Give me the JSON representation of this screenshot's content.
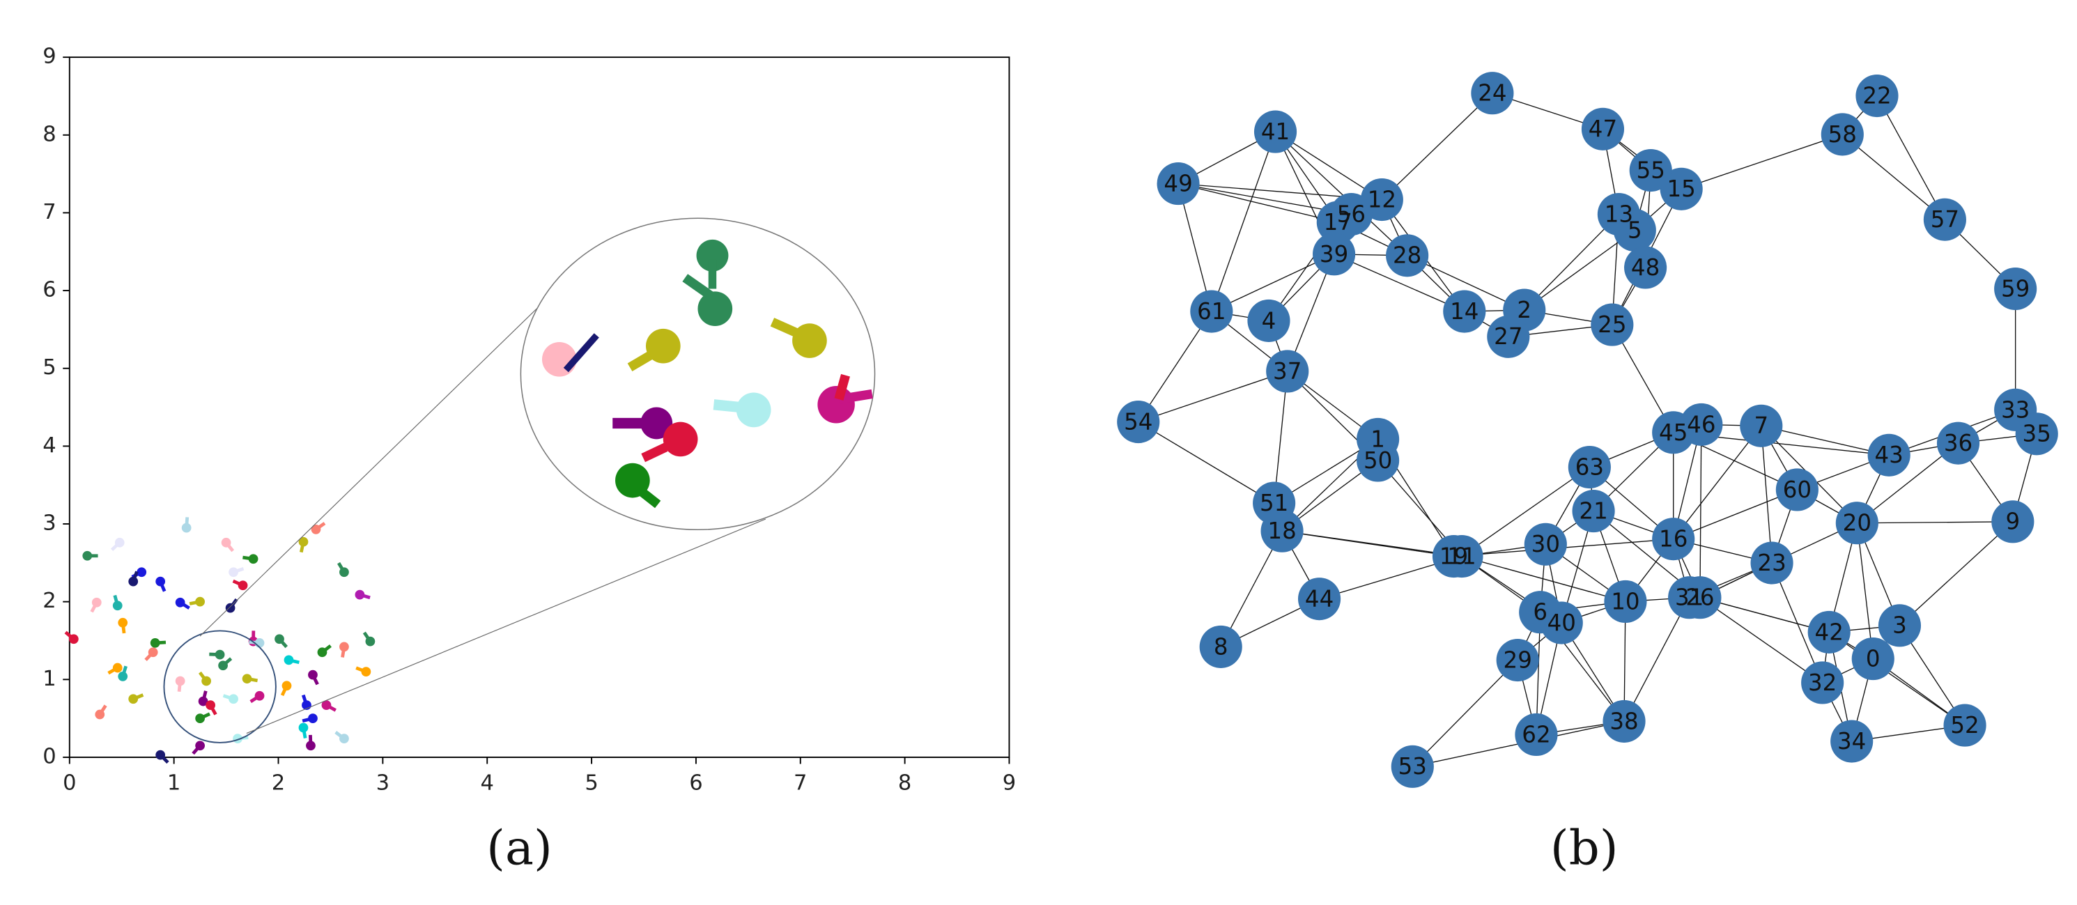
{
  "chart_data": [
    {
      "type": "scatter",
      "caption": "(a)",
      "x": [
        0.17,
        0.48,
        1.12,
        1.5,
        1.76,
        2.36,
        2.24,
        2.63,
        2.78,
        0.69,
        0.61,
        0.87,
        1.66,
        1.57,
        0.26,
        0.46,
        1.06,
        1.25,
        1.54,
        0.51,
        0.04,
        0.82,
        0.8,
        1.76,
        2.01,
        1.82,
        2.42,
        2.63,
        2.88,
        2.1,
        0.46,
        0.51,
        2.33,
        2.84,
        0.61,
        2.08,
        2.27,
        2.46,
        2.33,
        0.29,
        2.24,
        2.63,
        1.61,
        1.25,
        2.31,
        0.87,
        1.44,
        1.47,
        1.06,
        1.31,
        1.7,
        1.82,
        1.28,
        1.35,
        1.57,
        1.25
      ],
      "values": [
        2.59,
        2.76,
        2.95,
        2.76,
        2.55,
        2.93,
        2.77,
        2.38,
        2.09,
        2.38,
        2.26,
        2.26,
        2.21,
        2.38,
        1.99,
        1.95,
        1.99,
        2.0,
        1.92,
        1.73,
        1.52,
        1.47,
        1.35,
        1.49,
        1.52,
        1.47,
        1.35,
        1.42,
        1.49,
        1.25,
        1.15,
        1.04,
        1.06,
        1.1,
        0.75,
        0.92,
        0.67,
        0.67,
        0.5,
        0.55,
        0.38,
        0.24,
        0.24,
        0.15,
        0.15,
        0.03,
        1.32,
        1.18,
        0.98,
        0.98,
        1.01,
        0.79,
        0.72,
        0.67,
        0.75,
        0.5
      ],
      "colors": [
        "#2e8b57",
        "#e6e6fa",
        "#add8e6",
        "#ffb6c1",
        "#228b22",
        "#fa8072",
        "#bdb716",
        "#2e8b57",
        "#b01cb0",
        "#1a1add",
        "#191970",
        "#1a1add",
        "#dc143c",
        "#e6e6fa",
        "#ffb6c1",
        "#20b2aa",
        "#1a1add",
        "#bdb716",
        "#191970",
        "#ffa500",
        "#dc143c",
        "#228b22",
        "#fa8072",
        "#c71585",
        "#2e8b57",
        "#add8e6",
        "#228b22",
        "#fa8072",
        "#2e8b57",
        "#00ced1",
        "#ffa500",
        "#20b2aa",
        "#800080",
        "#ffa500",
        "#bdb716",
        "#ffa500",
        "#1a1add",
        "#c71585",
        "#1a1add",
        "#fa8072",
        "#00ced1",
        "#add8e6",
        "#afeeee",
        "#800080",
        "#800080",
        "#191970",
        "#2e8b57",
        "#2e8b57",
        "#ffb6c1",
        "#bdb716",
        "#bdb716",
        "#c71585",
        "#800080",
        "#dc143c",
        "#afeeee",
        "#228b22"
      ],
      "xlim": [
        0,
        9
      ],
      "ylim": [
        0,
        9
      ],
      "xticks": [
        0,
        1,
        2,
        3,
        4,
        5,
        6,
        7,
        8,
        9
      ],
      "yticks": [
        0,
        1,
        2,
        3,
        4,
        5,
        6,
        7,
        8,
        9
      ]
    },
    {
      "type": "network",
      "caption": "(b)",
      "nodes": [
        "0",
        "1",
        "2",
        "3",
        "4",
        "5",
        "6",
        "7",
        "8",
        "9",
        "10",
        "11",
        "12",
        "13",
        "14",
        "15",
        "16",
        "17",
        "18",
        "19",
        "20",
        "21",
        "22",
        "23",
        "24",
        "25",
        "26",
        "27",
        "28",
        "29",
        "30",
        "31",
        "32",
        "33",
        "34",
        "35",
        "36",
        "37",
        "38",
        "39",
        "40",
        "41",
        "42",
        "43",
        "44",
        "45",
        "46",
        "47",
        "48",
        "49",
        "50",
        "51",
        "52",
        "53",
        "54",
        "55",
        "56",
        "57",
        "58",
        "59",
        "60",
        "61",
        "62",
        "63"
      ],
      "node_color": "#3a75af"
    }
  ]
}
